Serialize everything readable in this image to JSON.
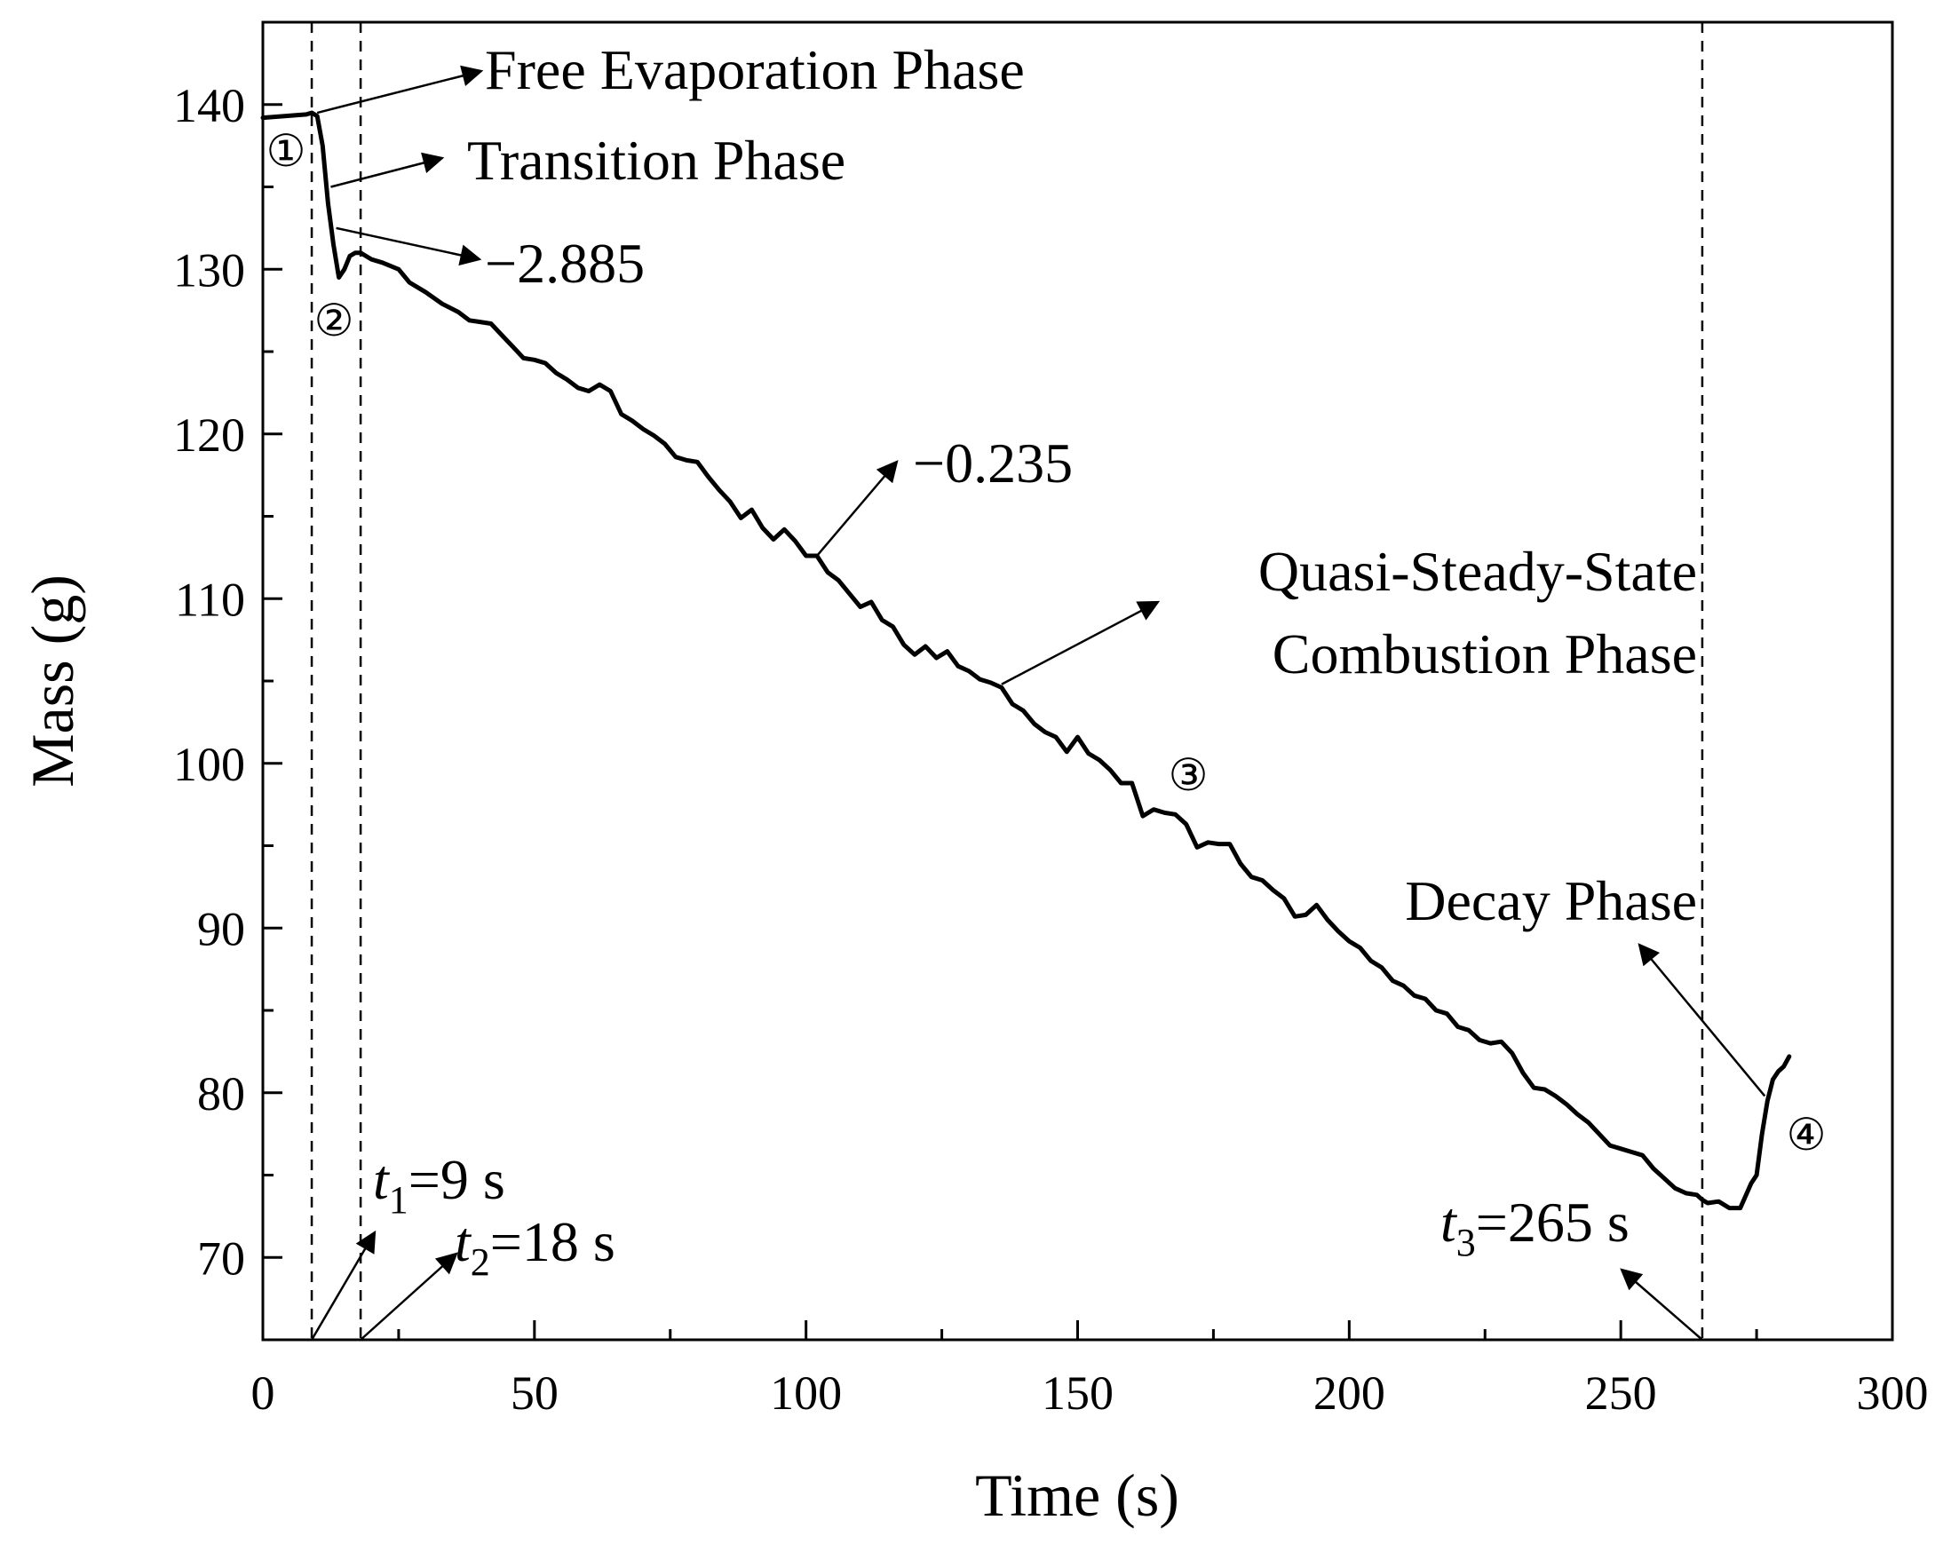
{
  "chart_data": {
    "type": "line",
    "title": "",
    "xlabel": "Time (s)",
    "ylabel": "Mass (g)",
    "xlim": [
      0,
      300
    ],
    "ylim": [
      65,
      145
    ],
    "x_ticks": [
      0,
      50,
      100,
      150,
      200,
      250,
      300
    ],
    "y_ticks": [
      70,
      80,
      90,
      100,
      110,
      120,
      130,
      140
    ],
    "grid": false,
    "series": [
      {
        "name": "Mass",
        "color": "#000000",
        "points": [
          [
            0,
            139.2
          ],
          [
            4,
            139.3
          ],
          [
            8,
            139.4
          ],
          [
            9,
            139.5
          ],
          [
            10,
            139.3
          ],
          [
            11,
            137.5
          ],
          [
            12,
            134
          ],
          [
            13,
            131.5
          ],
          [
            14,
            129.5
          ],
          [
            15,
            130
          ],
          [
            16,
            130.8
          ],
          [
            17,
            131.0
          ],
          [
            18,
            131.0
          ],
          [
            20,
            130.6
          ],
          [
            22,
            130.4
          ],
          [
            25,
            130.0
          ],
          [
            27,
            129.2
          ],
          [
            30,
            128.6
          ],
          [
            33,
            127.9
          ],
          [
            36,
            127.4
          ],
          [
            38,
            126.9
          ],
          [
            40,
            126.8
          ],
          [
            42,
            126.7
          ],
          [
            44,
            126.0
          ],
          [
            46,
            125.3
          ],
          [
            48,
            124.6
          ],
          [
            50,
            124.5
          ],
          [
            52,
            124.3
          ],
          [
            54,
            123.7
          ],
          [
            56,
            123.3
          ],
          [
            58,
            122.8
          ],
          [
            60,
            122.6
          ],
          [
            62,
            123.0
          ],
          [
            64,
            122.6
          ],
          [
            66,
            121.2
          ],
          [
            68,
            120.8
          ],
          [
            70,
            120.3
          ],
          [
            72,
            119.9
          ],
          [
            74,
            119.4
          ],
          [
            76,
            118.6
          ],
          [
            78,
            118.4
          ],
          [
            80,
            118.3
          ],
          [
            82,
            117.4
          ],
          [
            84,
            116.6
          ],
          [
            86,
            115.9
          ],
          [
            88,
            114.9
          ],
          [
            90,
            115.4
          ],
          [
            92,
            114.3
          ],
          [
            94,
            113.6
          ],
          [
            96,
            114.2
          ],
          [
            98,
            113.5
          ],
          [
            100,
            112.6
          ],
          [
            102,
            112.6
          ],
          [
            104,
            111.6
          ],
          [
            106,
            111.1
          ],
          [
            108,
            110.3
          ],
          [
            110,
            109.5
          ],
          [
            112,
            109.8
          ],
          [
            114,
            108.7
          ],
          [
            116,
            108.3
          ],
          [
            118,
            107.2
          ],
          [
            120,
            106.6
          ],
          [
            122,
            107.1
          ],
          [
            124,
            106.4
          ],
          [
            126,
            106.8
          ],
          [
            128,
            105.9
          ],
          [
            130,
            105.6
          ],
          [
            132,
            105.1
          ],
          [
            134,
            104.9
          ],
          [
            136,
            104.6
          ],
          [
            138,
            103.6
          ],
          [
            140,
            103.2
          ],
          [
            142,
            102.4
          ],
          [
            144,
            101.9
          ],
          [
            146,
            101.6
          ],
          [
            148,
            100.7
          ],
          [
            150,
            101.6
          ],
          [
            152,
            100.6
          ],
          [
            154,
            100.2
          ],
          [
            156,
            99.6
          ],
          [
            158,
            98.8
          ],
          [
            160,
            98.8
          ],
          [
            162,
            96.8
          ],
          [
            164,
            97.2
          ],
          [
            166,
            97.0
          ],
          [
            168,
            96.9
          ],
          [
            170,
            96.3
          ],
          [
            172,
            94.9
          ],
          [
            174,
            95.2
          ],
          [
            176,
            95.1
          ],
          [
            178,
            95.1
          ],
          [
            180,
            93.9
          ],
          [
            182,
            93.1
          ],
          [
            184,
            92.9
          ],
          [
            186,
            92.3
          ],
          [
            188,
            91.8
          ],
          [
            190,
            90.7
          ],
          [
            192,
            90.8
          ],
          [
            194,
            91.4
          ],
          [
            196,
            90.5
          ],
          [
            198,
            89.8
          ],
          [
            200,
            89.2
          ],
          [
            202,
            88.8
          ],
          [
            204,
            88.0
          ],
          [
            206,
            87.6
          ],
          [
            208,
            86.8
          ],
          [
            210,
            86.5
          ],
          [
            212,
            85.9
          ],
          [
            214,
            85.7
          ],
          [
            216,
            85.0
          ],
          [
            218,
            84.8
          ],
          [
            220,
            84.0
          ],
          [
            222,
            83.8
          ],
          [
            224,
            83.2
          ],
          [
            226,
            83.0
          ],
          [
            228,
            83.1
          ],
          [
            230,
            82.4
          ],
          [
            232,
            81.2
          ],
          [
            234,
            80.3
          ],
          [
            236,
            80.2
          ],
          [
            238,
            79.8
          ],
          [
            240,
            79.3
          ],
          [
            242,
            78.7
          ],
          [
            244,
            78.2
          ],
          [
            246,
            77.5
          ],
          [
            248,
            76.8
          ],
          [
            250,
            76.6
          ],
          [
            252,
            76.4
          ],
          [
            254,
            76.2
          ],
          [
            256,
            75.4
          ],
          [
            258,
            74.8
          ],
          [
            260,
            74.2
          ],
          [
            262,
            73.9
          ],
          [
            264,
            73.8
          ],
          [
            265,
            73.5
          ],
          [
            266,
            73.3
          ],
          [
            268,
            73.4
          ],
          [
            270,
            73.0
          ],
          [
            272,
            73.0
          ],
          [
            274,
            74.5
          ],
          [
            275,
            75.0
          ],
          [
            276,
            77.5
          ],
          [
            277,
            79.5
          ],
          [
            278,
            80.8
          ],
          [
            279,
            81.3
          ],
          [
            280,
            81.6
          ],
          [
            281,
            82.2
          ]
        ]
      }
    ],
    "vlines": [
      {
        "x": 9,
        "label_var": "t",
        "label_sub": "1",
        "label_val": "=9 s"
      },
      {
        "x": 18,
        "label_var": "t",
        "label_sub": "2",
        "label_val": "=18 s"
      },
      {
        "x": 265,
        "label_var": "t",
        "label_sub": "3",
        "label_val": "=265 s"
      }
    ],
    "annotations": {
      "phase_free_evaporation": "Free Evaporation Phase",
      "phase_transition": "Transition Phase",
      "slope_transition": "−2.885",
      "slope_steady": "−0.235",
      "phase_quasi_line1": "Quasi-Steady-State",
      "phase_quasi_line2": "Combustion Phase",
      "phase_decay": "Decay Phase",
      "marker_1": "①",
      "marker_2": "②",
      "marker_3": "③",
      "marker_4": "④"
    }
  }
}
